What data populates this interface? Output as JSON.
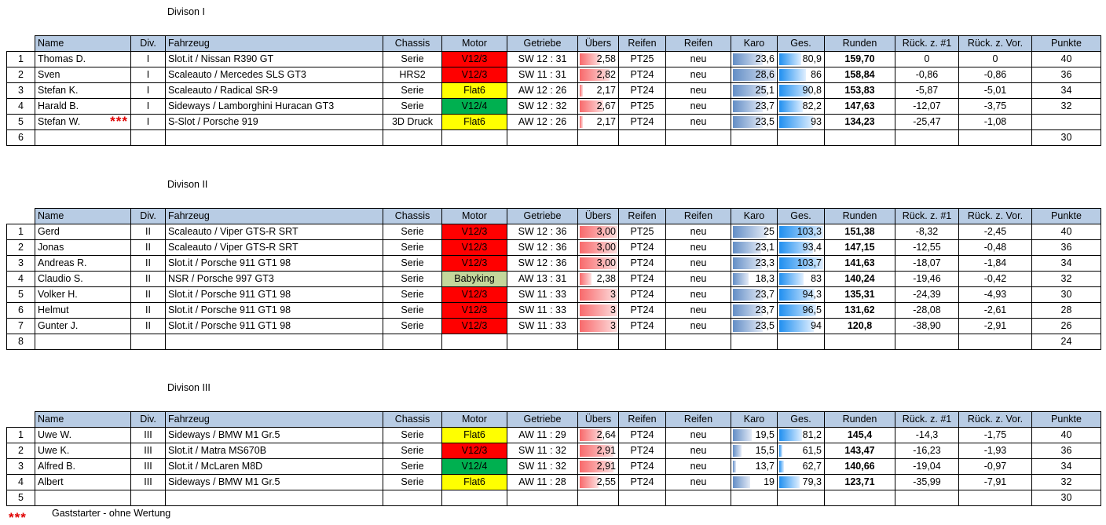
{
  "tables": [
    {
      "title": "Divison I",
      "header": [
        "Name",
        "Div.",
        "Fahrzeug",
        "Chassis",
        "Motor",
        "Getriebe",
        "Übers",
        "Reifen",
        "Reifen",
        "Karo",
        "Ges.",
        "Runden",
        "Rück. z. #1",
        "Rück. z. Vor.",
        "Punkte"
      ],
      "rows": [
        {
          "cells": [
            "1",
            "Thomas D.",
            "I",
            "Slot.it / Nissan R390 GT",
            "Serie",
            "V12/3",
            "SW 12 : 31",
            "2,58",
            "PT25",
            "neu",
            "23,6",
            "80,9",
            "159,70",
            "0",
            "0",
            "40"
          ],
          "motor_color": "#ff0000"
        },
        {
          "cells": [
            "2",
            "Sven",
            "I",
            "Scaleauto / Mercedes SLS GT3",
            "HRS2",
            "V12/3",
            "SW 11 : 31",
            "2,82",
            "PT24",
            "neu",
            "28,6",
            "86",
            "158,84",
            "-0,86",
            "-0,86",
            "36"
          ],
          "motor_color": "#ff0000"
        },
        {
          "cells": [
            "3",
            "Stefan K.",
            "I",
            "Scaleauto / Radical SR-9",
            "Serie",
            "Flat6",
            "AW 12 : 26",
            "2,17",
            "PT24",
            "neu",
            "25,1",
            "90,8",
            "153,83",
            "-5,87",
            "-5,01",
            "34"
          ],
          "motor_color": "#ffff00"
        },
        {
          "cells": [
            "4",
            "Harald B.",
            "I",
            "Sideways / Lamborghini Huracan GT3",
            "Serie",
            "V12/4",
            "SW 12 : 32",
            "2,67",
            "PT25",
            "neu",
            "23,7",
            "82,2",
            "147,63",
            "-12,07",
            "-3,75",
            "32"
          ],
          "motor_color": "#00b050"
        },
        {
          "cells": [
            "5",
            "Stefan W.",
            "I",
            "S-Slot / Porsche 919",
            "3D Druck",
            "Flat6",
            "AW 12 : 26",
            "2,17",
            "PT24",
            "neu",
            "23,5",
            "93",
            "134,23",
            "-25,47",
            "-1,08",
            null
          ],
          "motor_color": "#ffff00",
          "marker": "***"
        },
        {
          "cells": [
            "6",
            null,
            null,
            null,
            null,
            null,
            null,
            null,
            null,
            null,
            null,
            null,
            null,
            null,
            null,
            "30"
          ]
        }
      ]
    },
    {
      "title": "Divison II",
      "header": [
        "Name",
        "Div.",
        "Fahrzeug",
        "Chassis",
        "Motor",
        "Getriebe",
        "Übers",
        "Reifen",
        "Reifen",
        "Karo",
        "Ges.",
        "Runden",
        "Rück. z. #1",
        "Rück. z. Vor.",
        "Punkte"
      ],
      "rows": [
        {
          "cells": [
            "1",
            "Gerd",
            "II",
            "Scaleauto / Viper GTS-R SRT",
            "Serie",
            "V12/3",
            "SW 12 : 36",
            "3,00",
            "PT25",
            "neu",
            "25",
            "103,3",
            "151,38",
            "-8,32",
            "-2,45",
            "40"
          ],
          "motor_color": "#ff0000"
        },
        {
          "cells": [
            "2",
            "Jonas",
            "II",
            "Scaleauto / Viper GTS-R SRT",
            "Serie",
            "V12/3",
            "SW 12 : 36",
            "3,00",
            "PT24",
            "neu",
            "23,1",
            "93,4",
            "147,15",
            "-12,55",
            "-0,48",
            "36"
          ],
          "motor_color": "#ff0000"
        },
        {
          "cells": [
            "3",
            "Andreas R.",
            "II",
            "Slot.it / Porsche 911 GT1 98",
            "Serie",
            "V12/3",
            "SW 12 : 36",
            "3,00",
            "PT24",
            "neu",
            "23,3",
            "103,7",
            "141,63",
            "-18,07",
            "-1,84",
            "34"
          ],
          "motor_color": "#ff0000"
        },
        {
          "cells": [
            "4",
            "Claudio S.",
            "II",
            "NSR / Porsche 997 GT3",
            "Serie",
            "Babyking",
            "AW 13 : 31",
            "2,38",
            "PT24",
            "neu",
            "18,3",
            "83",
            "140,24",
            "-19,46",
            "-0,42",
            "32"
          ],
          "motor_color": "#c4d79b"
        },
        {
          "cells": [
            "5",
            "Volker H.",
            "II",
            "Slot.it / Porsche 911 GT1 98",
            "Serie",
            "V12/3",
            "SW 11 : 33",
            "3",
            "PT24",
            "neu",
            "23,7",
            "94,3",
            "135,31",
            "-24,39",
            "-4,93",
            "30"
          ],
          "motor_color": "#ff0000"
        },
        {
          "cells": [
            "6",
            "Helmut",
            "II",
            "Slot.it / Porsche 911 GT1 98",
            "Serie",
            "V12/3",
            "SW 11 : 33",
            "3",
            "PT24",
            "neu",
            "23,7",
            "96,5",
            "131,62",
            "-28,08",
            "-2,61",
            "28"
          ],
          "motor_color": "#ff0000"
        },
        {
          "cells": [
            "7",
            "Gunter J.",
            "II",
            "Slot.it / Porsche 911 GT1 98",
            "Serie",
            "V12/3",
            "SW 11 : 33",
            "3",
            "PT24",
            "neu",
            "23,5",
            "94",
            "120,8",
            "-38,90",
            "-2,91",
            "26"
          ],
          "motor_color": "#ff0000"
        },
        {
          "cells": [
            "8",
            null,
            null,
            null,
            null,
            null,
            null,
            null,
            null,
            null,
            null,
            null,
            null,
            null,
            null,
            "24"
          ]
        }
      ]
    },
    {
      "title": "Divison III",
      "header": [
        "Name",
        "Div.",
        "Fahrzeug",
        "Chassis",
        "Motor",
        "Getriebe",
        "Übers",
        "Reifen",
        "Reifen",
        "Karo",
        "Ges.",
        "Runden",
        "Rück. z. #1",
        "Rück. z. Vor.",
        "Punkte"
      ],
      "rows": [
        {
          "cells": [
            "1",
            "Uwe W.",
            "III",
            "Sideways / BMW M1 Gr.5",
            "Serie",
            "Flat6",
            "AW 11 : 29",
            "2,64",
            "PT24",
            "neu",
            "19,5",
            "81,2",
            "145,4",
            "-14,3",
            "-1,75",
            "40"
          ],
          "motor_color": "#ffff00"
        },
        {
          "cells": [
            "2",
            "Uwe K.",
            "III",
            "Slot.it / Matra MS670B",
            "Serie",
            "V12/3",
            "SW 11 : 32",
            "2,91",
            "PT24",
            "neu",
            "15,5",
            "61,5",
            "143,47",
            "-16,23",
            "-1,93",
            "36"
          ],
          "motor_color": "#ff0000"
        },
        {
          "cells": [
            "3",
            "Alfred B.",
            "III",
            "Slot.it / McLaren M8D",
            "Serie",
            "V12/4",
            "SW 11 : 32",
            "2,91",
            "PT24",
            "neu",
            "13,7",
            "62,7",
            "140,66",
            "-19,04",
            "-0,97",
            "34"
          ],
          "motor_color": "#00b050"
        },
        {
          "cells": [
            "4",
            "Albert",
            "III",
            "Sideways / BMW M1 Gr.5",
            "Serie",
            "Flat6",
            "AW 11 : 28",
            "2,55",
            "PT24",
            "neu",
            "19",
            "79,3",
            "123,71",
            "-35,99",
            "-7,91",
            "32"
          ],
          "motor_color": "#ffff00"
        },
        {
          "cells": [
            "5",
            null,
            null,
            null,
            null,
            null,
            null,
            null,
            null,
            null,
            null,
            null,
            null,
            null,
            null,
            "30"
          ]
        }
      ]
    }
  ],
  "footnote": {
    "marker": "***",
    "text": "Gaststarter - ohne Wertung"
  }
}
